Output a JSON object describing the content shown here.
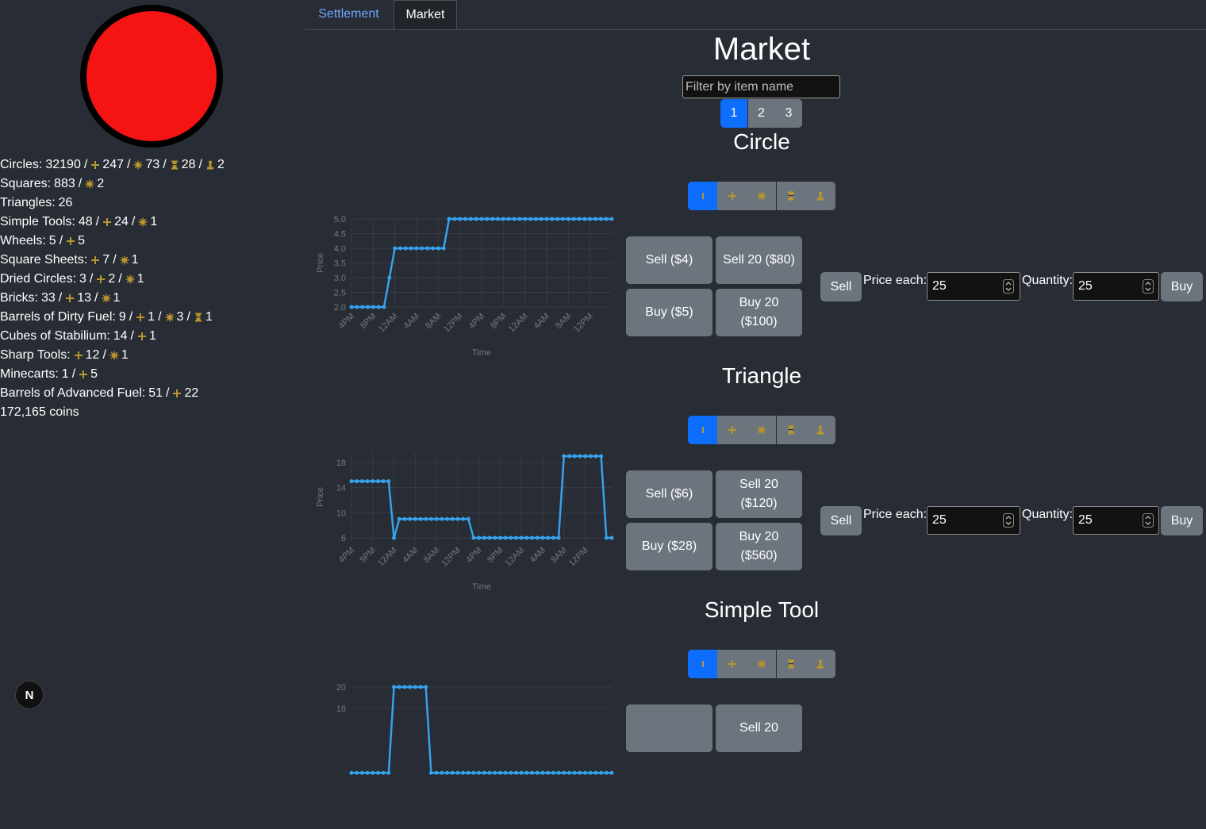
{
  "sidebar": {
    "separator": "/",
    "inventory": [
      {
        "label": "Circles:",
        "counts": [
          32190,
          247,
          73,
          28,
          2
        ]
      },
      {
        "label": "Squares:",
        "counts": [
          883,
          null,
          2,
          null,
          null
        ]
      },
      {
        "label": "Triangles:",
        "counts": [
          26,
          null,
          null,
          null,
          null
        ]
      },
      {
        "label": "Simple Tools:",
        "counts": [
          48,
          24,
          1,
          null,
          null
        ]
      },
      {
        "label": "Wheels:",
        "counts": [
          5,
          5,
          null,
          null,
          null
        ]
      },
      {
        "label": "Square Sheets:",
        "counts": [
          null,
          7,
          1,
          null,
          null
        ]
      },
      {
        "label": "Dried Circles:",
        "counts": [
          3,
          2,
          1,
          null,
          null
        ]
      },
      {
        "label": "Bricks:",
        "counts": [
          33,
          13,
          1,
          null,
          null
        ]
      },
      {
        "label": "Barrels of Dirty Fuel:",
        "counts": [
          9,
          1,
          3,
          1,
          null
        ]
      },
      {
        "label": "Cubes of Stabilium:",
        "counts": [
          14,
          1,
          null,
          null,
          null
        ]
      },
      {
        "label": "Sharp Tools:",
        "counts": [
          null,
          12,
          1,
          null,
          null
        ]
      },
      {
        "label": "Minecarts:",
        "counts": [
          1,
          5,
          null,
          null,
          null
        ]
      },
      {
        "label": "Barrels of Advanced Fuel:",
        "counts": [
          51,
          22,
          null,
          null,
          null
        ]
      }
    ],
    "coins": "172,165 coins"
  },
  "dev_badge": "N",
  "tabs": [
    "Settlement",
    "Market"
  ],
  "market": {
    "title": "Market",
    "filter_placeholder": "Filter by item name",
    "pages": [
      1,
      2,
      3
    ],
    "items": [
      {
        "name": "Circle",
        "chart": {
          "type": "line",
          "ylabel": "Price",
          "xlabel": "Time",
          "color": "#36a2eb",
          "grid": true,
          "ylim": [
            2,
            5
          ],
          "yticks": [
            {
              "value": 2,
              "label": "2.0"
            },
            2.5,
            {
              "value": 3,
              "label": "3.0"
            },
            3.5,
            {
              "value": 4,
              "label": "4.0"
            },
            4.5,
            {
              "value": 5,
              "label": "5.0"
            }
          ],
          "xlim": [
            0,
            48
          ],
          "xticks": [
            {
              "value": 0,
              "label": "4PM"
            },
            {
              "value": 4,
              "label": "8PM"
            },
            {
              "value": 8,
              "label": "12AM"
            },
            {
              "value": 12,
              "label": "4AM"
            },
            {
              "value": 16,
              "label": "8AM"
            },
            {
              "value": 20,
              "label": "12PM"
            },
            {
              "value": 24,
              "label": "4PM"
            },
            {
              "value": 28,
              "label": "8PM"
            },
            {
              "value": 32,
              "label": "12AM"
            },
            {
              "value": 36,
              "label": "4AM"
            },
            {
              "value": 40,
              "label": "8AM"
            },
            {
              "value": 44,
              "label": "12PM"
            }
          ],
          "values": [
            2,
            2,
            2,
            2,
            2,
            2,
            2,
            3,
            4,
            4,
            4,
            4,
            4,
            4,
            4,
            4,
            4,
            4,
            5,
            5,
            5,
            5,
            5,
            5,
            5,
            5,
            5,
            5,
            5,
            5,
            5,
            5,
            5,
            5,
            5,
            5,
            5,
            5,
            5,
            5,
            5,
            5,
            5,
            5,
            5,
            5,
            5,
            5,
            5
          ]
        },
        "trade_buttons": [
          "Sell ($4)",
          "Sell 20 ($80)",
          "Buy ($5)",
          "Buy 20 ($100)"
        ],
        "order": {
          "sell": "Sell",
          "price_label": "Price each:",
          "price": 25,
          "quantity_label": "Quantity:",
          "quantity": 25,
          "buy": "Buy"
        }
      },
      {
        "name": "Triangle",
        "chart": {
          "type": "line",
          "ylabel": "Price",
          "xlabel": "Time",
          "color": "#36a2eb",
          "grid": true,
          "ylim": [
            5.5,
            19.5
          ],
          "yticks": [
            6,
            10,
            14,
            18
          ],
          "xlim": [
            0,
            49
          ],
          "xticks": [
            {
              "value": 0,
              "label": "4PM"
            },
            {
              "value": 4,
              "label": "8PM"
            },
            {
              "value": 8,
              "label": "12AM"
            },
            {
              "value": 12,
              "label": "4AM"
            },
            {
              "value": 16,
              "label": "8AM"
            },
            {
              "value": 20,
              "label": "12PM"
            },
            {
              "value": 24,
              "label": "4PM"
            },
            {
              "value": 28,
              "label": "8PM"
            },
            {
              "value": 32,
              "label": "12AM"
            },
            {
              "value": 36,
              "label": "4AM"
            },
            {
              "value": 40,
              "label": "8AM"
            },
            {
              "value": 44,
              "label": "12PM"
            }
          ],
          "values": [
            15,
            15,
            15,
            15,
            15,
            15,
            15,
            15,
            6,
            9,
            9,
            9,
            9,
            9,
            9,
            9,
            9,
            9,
            9,
            9,
            9,
            9,
            9,
            6,
            6,
            6,
            6,
            6,
            6,
            6,
            6,
            6,
            6,
            6,
            6,
            6,
            6,
            6,
            6,
            6,
            19,
            19,
            19,
            19,
            19,
            19,
            19,
            19,
            6,
            6
          ]
        },
        "trade_buttons": [
          "Sell ($6)",
          "Sell 20 ($120)",
          "Buy ($28)",
          "Buy 20 ($560)"
        ],
        "order": {
          "sell": "Sell",
          "price_label": "Price each:",
          "price": 25,
          "quantity_label": "Quantity:",
          "quantity": 25,
          "buy": "Buy"
        }
      },
      {
        "name": "Simple Tool",
        "chart": {
          "type": "line",
          "color": "#36a2eb",
          "grid": true,
          "ylim": [
            11.8,
            20
          ],
          "yticks": [
            18,
            20
          ],
          "xlim": [
            0,
            49
          ],
          "values": [
            12,
            12,
            12,
            12,
            12,
            12,
            12,
            12,
            20,
            20,
            20,
            20,
            20,
            20,
            20,
            12,
            12,
            12,
            12,
            12,
            12,
            12,
            12,
            12,
            12,
            12,
            12,
            12,
            12,
            12,
            12,
            12,
            12,
            12,
            12,
            12,
            12,
            12,
            12,
            12,
            12,
            12,
            12,
            12,
            12,
            12,
            12,
            12,
            12,
            12
          ]
        },
        "trade_buttons": [
          null,
          "Sell 20"
        ]
      }
    ]
  }
}
